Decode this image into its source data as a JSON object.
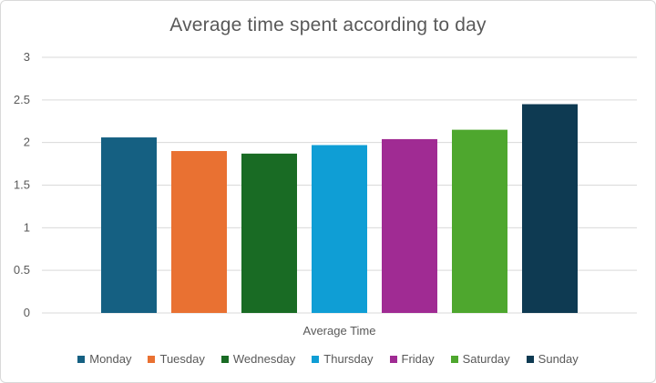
{
  "chart_data": {
    "type": "bar",
    "title": "Average time spent according to day",
    "categories": [
      "Average Time"
    ],
    "ylim": [
      0,
      3
    ],
    "yticks": [
      0,
      0.5,
      1,
      1.5,
      2,
      2.5,
      3
    ],
    "ytick_labels": [
      "0",
      "0.5",
      "1",
      "1.5",
      "2",
      "2.5",
      "3"
    ],
    "grid": true,
    "legend_position": "bottom",
    "series": [
      {
        "name": "Monday",
        "values": [
          2.06
        ],
        "color": "#156082"
      },
      {
        "name": "Tuesday",
        "values": [
          1.9
        ],
        "color": "#E97132"
      },
      {
        "name": "Wednesday",
        "values": [
          1.87
        ],
        "color": "#196B24"
      },
      {
        "name": "Thursday",
        "values": [
          1.97
        ],
        "color": "#0F9ED5"
      },
      {
        "name": "Friday",
        "values": [
          2.04
        ],
        "color": "#A02B93"
      },
      {
        "name": "Saturday",
        "values": [
          2.15
        ],
        "color": "#4EA72E"
      },
      {
        "name": "Sunday",
        "values": [
          2.45
        ],
        "color": "#0E3A52"
      }
    ]
  }
}
